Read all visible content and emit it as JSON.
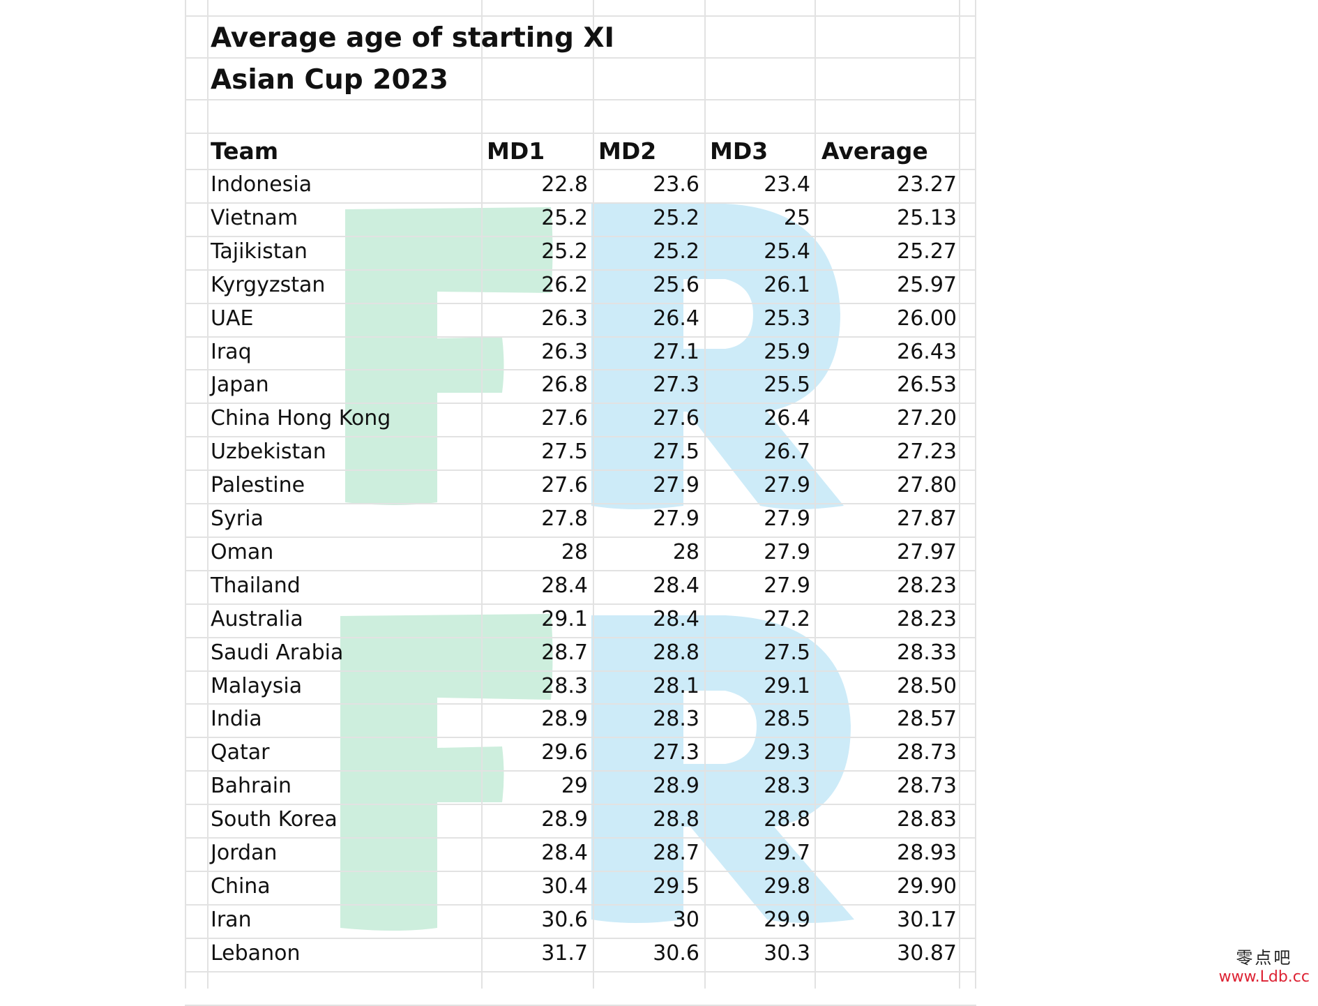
{
  "sheet": {
    "title_line1": "Average age of starting XI",
    "title_line2": "Asian Cup 2023",
    "headers": [
      "Team",
      "MD1",
      "MD2",
      "MD3",
      "Average"
    ],
    "rows": [
      [
        "Indonesia",
        "22.8",
        "23.6",
        "23.4",
        "23.27"
      ],
      [
        "Vietnam",
        "25.2",
        "25.2",
        "25",
        "25.13"
      ],
      [
        "Tajikistan",
        "25.2",
        "25.2",
        "25.4",
        "25.27"
      ],
      [
        "Kyrgyzstan",
        "26.2",
        "25.6",
        "26.1",
        "25.97"
      ],
      [
        "UAE",
        "26.3",
        "26.4",
        "25.3",
        "26.00"
      ],
      [
        "Iraq",
        "26.3",
        "27.1",
        "25.9",
        "26.43"
      ],
      [
        "Japan",
        "26.8",
        "27.3",
        "25.5",
        "26.53"
      ],
      [
        "China Hong Kong",
        "27.6",
        "27.6",
        "26.4",
        "27.20"
      ],
      [
        "Uzbekistan",
        "27.5",
        "27.5",
        "26.7",
        "27.23"
      ],
      [
        "Palestine",
        "27.6",
        "27.9",
        "27.9",
        "27.80"
      ],
      [
        "Syria",
        "27.8",
        "27.9",
        "27.9",
        "27.87"
      ],
      [
        "Oman",
        "28",
        "28",
        "27.9",
        "27.97"
      ],
      [
        "Thailand",
        "28.4",
        "28.4",
        "27.9",
        "28.23"
      ],
      [
        "Australia",
        "29.1",
        "28.4",
        "27.2",
        "28.23"
      ],
      [
        "Saudi Arabia",
        "28.7",
        "28.8",
        "27.5",
        "28.33"
      ],
      [
        "Malaysia",
        "28.3",
        "28.1",
        "29.1",
        "28.50"
      ],
      [
        "India",
        "28.9",
        "28.3",
        "28.5",
        "28.57"
      ],
      [
        "Qatar",
        "29.6",
        "27.3",
        "29.3",
        "28.73"
      ],
      [
        "Bahrain",
        "29",
        "28.9",
        "28.3",
        "28.73"
      ],
      [
        "South Korea",
        "28.9",
        "28.8",
        "28.8",
        "28.83"
      ],
      [
        "Jordan",
        "28.4",
        "28.7",
        "29.7",
        "28.93"
      ],
      [
        "China",
        "30.4",
        "29.5",
        "29.8",
        "29.90"
      ],
      [
        "Iran",
        "30.6",
        "30",
        "29.9",
        "30.17"
      ],
      [
        "Lebanon",
        "31.7",
        "30.6",
        "30.3",
        "30.87"
      ]
    ]
  },
  "watermark": {
    "letters": [
      "F",
      "R"
    ],
    "colors": {
      "f": "#cdeedd",
      "r": "#cdebf8"
    }
  },
  "site_mark": {
    "cn": "零点吧",
    "url": "www.Ldb.cc"
  }
}
